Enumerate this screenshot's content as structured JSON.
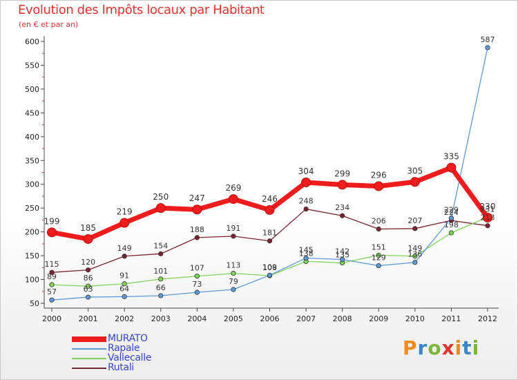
{
  "header": {
    "title": "Evolution des Impôts locaux par Habitant",
    "subtitle": "(en € et par an)"
  },
  "logo": {
    "text": "Proxiti",
    "letters": [
      "P",
      "r",
      "o",
      "x",
      "i",
      "t",
      "i"
    ],
    "colors": [
      "#f08a1c",
      "#3a86c8",
      "#7ab83a",
      "#e0332f",
      "#f08a1c",
      "#3a86c8",
      "#7ab83a"
    ]
  },
  "chart_data": {
    "type": "line",
    "title": "Evolution des Impôts locaux par Habitant",
    "subtitle": "(en € et par an)",
    "xlabel": "",
    "ylabel": "",
    "x": [
      "2000",
      "2001",
      "2002",
      "2003",
      "2004",
      "2005",
      "2006",
      "2007",
      "2008",
      "2009",
      "2010",
      "2011",
      "2012"
    ],
    "ylim": [
      50,
      600
    ],
    "yticks": [
      50,
      100,
      150,
      200,
      250,
      300,
      350,
      400,
      450,
      500,
      550,
      600
    ],
    "grid": false,
    "legend_position": "bottom-left",
    "series": [
      {
        "name": "MURATO",
        "color": "#ee1c1c",
        "values": [
          199,
          185,
          219,
          250,
          247,
          269,
          246,
          304,
          299,
          296,
          305,
          335,
          230
        ],
        "labels": [
          "199",
          "185",
          "219",
          "250",
          "247",
          "269",
          "246",
          "304",
          "299",
          "296",
          "305",
          "335",
          "230"
        ]
      },
      {
        "name": "Rapale",
        "color": "#5b9bd5",
        "values": [
          57,
          63,
          64,
          66,
          73,
          79,
          109,
          145,
          142,
          129,
          136,
          229,
          587
        ],
        "labels": [
          "57",
          "63",
          "64",
          "66",
          "73",
          "79",
          "109",
          "145",
          "142",
          "129",
          "136",
          "229",
          "587"
        ]
      },
      {
        "name": "Vallecalle",
        "color": "#7fd35a",
        "values": [
          89,
          86,
          91,
          101,
          107,
          113,
          108,
          138,
          135,
          151,
          149,
          198,
          231
        ],
        "labels": [
          "89",
          "86",
          "91",
          "101",
          "107",
          "113",
          "108",
          "138",
          "135",
          "151",
          "149",
          "198",
          "231"
        ]
      },
      {
        "name": "Rutali",
        "color": "#7a2230",
        "values": [
          115,
          120,
          149,
          154,
          188,
          191,
          181,
          248,
          234,
          206,
          207,
          224,
          213
        ],
        "labels": [
          "115",
          "120",
          "149",
          "154",
          "188",
          "191",
          "181",
          "248",
          "234",
          "206",
          "207",
          "224",
          "213"
        ]
      }
    ]
  }
}
